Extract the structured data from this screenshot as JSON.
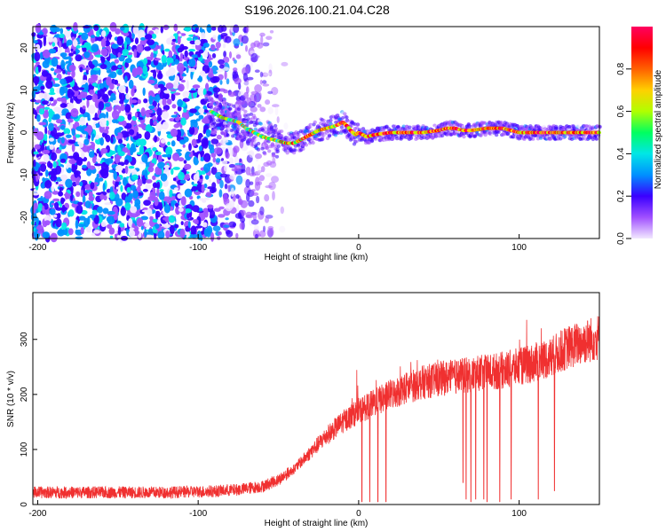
{
  "figure_title": "S196.2026.100.21.04.C28",
  "chart_data": [
    {
      "type": "heatmap",
      "title": "S196.2026.100.21.04.C28",
      "xlabel": "Height of straight line (km)",
      "ylabel": "Frequency (Hz)",
      "xlim": [
        -203,
        150
      ],
      "ylim": [
        -25,
        25
      ],
      "xticks": [
        -200,
        -100,
        0,
        100
      ],
      "yticks": [
        -20,
        -10,
        0,
        10,
        20
      ],
      "description_of_trace": "dominant frequency ridge (Hz) vs height (km)",
      "ridge": {
        "x": [
          -92,
          -85,
          -80,
          -75,
          -70,
          -65,
          -60,
          -55,
          -50,
          -45,
          -40,
          -35,
          -30,
          -25,
          -20,
          -15,
          -12,
          -10,
          -7,
          -5,
          -2,
          0,
          5,
          10,
          20,
          30,
          40,
          50,
          55,
          60,
          65,
          70,
          80,
          90,
          95,
          100,
          110,
          120,
          130,
          140,
          150
        ],
        "y": [
          5,
          3.5,
          3,
          2.5,
          1,
          0,
          -1,
          -1.5,
          -2,
          -2.5,
          -2.5,
          -1.5,
          -0.5,
          0.5,
          1,
          1.5,
          2,
          2.5,
          1.5,
          0.5,
          -0.5,
          0,
          -1,
          -0.5,
          0,
          0,
          0,
          0.5,
          1,
          1,
          0.5,
          0.5,
          1,
          1,
          0.5,
          0,
          0,
          0,
          0,
          0,
          0
        ]
      },
      "noise_region": {
        "x_range": [
          -203,
          -45
        ],
        "y_range": [
          -25,
          25
        ],
        "density": "high below -95 km, fading toward -45 km"
      },
      "colorbar": {
        "label": "Normalized spectral amplitude",
        "range": [
          0,
          1
        ],
        "ticks": [
          0,
          0.2,
          0.4,
          0.6,
          0.8
        ],
        "tick_labels": [
          "0.0",
          "0.2",
          "0.4",
          "0.6",
          "0.8"
        ],
        "colormap": [
          "#f2e8ff",
          "#a050ff",
          "#3a00ff",
          "#0090ff",
          "#00e6e6",
          "#00ff60",
          "#b0ff00",
          "#ffd000",
          "#ff6000",
          "#ff0000",
          "#ff0060"
        ]
      }
    },
    {
      "type": "line",
      "xlabel": "Height of straight line (km)",
      "ylabel": "SNR (10 * v/v)",
      "xlim": [
        -203,
        150
      ],
      "ylim": [
        0,
        385
      ],
      "xticks": [
        -200,
        -100,
        0,
        100
      ],
      "yticks": [
        0,
        100,
        200,
        300
      ],
      "series": [
        {
          "name": "SNR",
          "color": "#f03030",
          "baseline_x": [
            -203,
            -120,
            -90,
            -75,
            -60,
            -50,
            -40,
            -30,
            -20,
            -10,
            0,
            10,
            20,
            30,
            40,
            50,
            60,
            70,
            80,
            90,
            100,
            110,
            120,
            130,
            140,
            150
          ],
          "baseline_y": [
            22,
            22,
            24,
            27,
            33,
            45,
            65,
            95,
            125,
            150,
            170,
            185,
            200,
            212,
            222,
            228,
            232,
            236,
            240,
            244,
            250,
            258,
            268,
            285,
            295,
            305
          ],
          "dropouts_x": [
            2,
            7,
            12,
            17,
            65,
            67,
            70,
            73,
            78,
            80,
            88,
            95,
            112,
            122
          ],
          "dropouts_y": [
            5,
            5,
            5,
            5,
            40,
            10,
            5,
            10,
            10,
            5,
            5,
            10,
            10,
            25
          ]
        }
      ]
    }
  ]
}
